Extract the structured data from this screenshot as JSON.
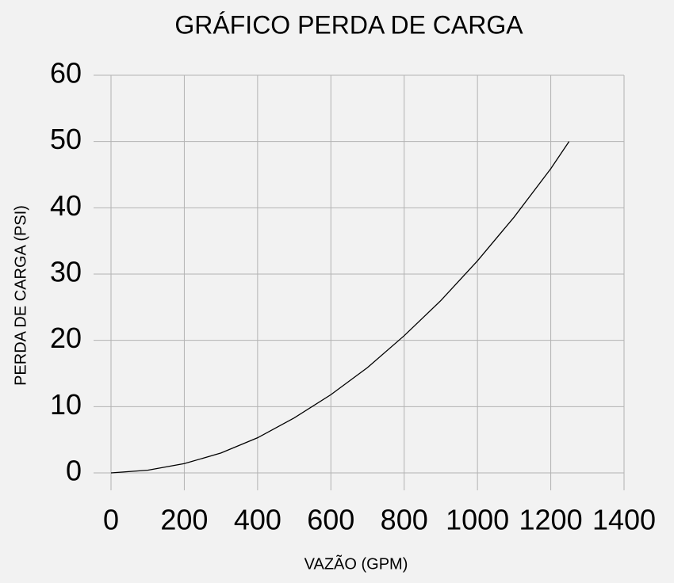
{
  "chart_data": {
    "type": "line",
    "title": "GRÁFICO PERDA DE CARGA",
    "x_label": "VAZÃO (GPM)",
    "y_label": "PERDA DE CARGA (PSI)",
    "x": [
      0,
      100,
      200,
      300,
      400,
      500,
      600,
      700,
      800,
      900,
      1000,
      1100,
      1200,
      1250
    ],
    "series": [
      {
        "color": "#000000",
        "values": [
          0,
          0.4,
          1.4,
          3,
          5.3,
          8.3,
          11.8,
          15.9,
          20.7,
          26,
          32,
          38.6,
          45.9,
          50
        ]
      }
    ],
    "xlim": [
      0,
      1400
    ],
    "xticks": [
      0,
      200,
      400,
      600,
      800,
      1000,
      1200,
      1400
    ],
    "ylim": [
      0,
      60
    ],
    "yticks": [
      0,
      10,
      20,
      30,
      40,
      50,
      60
    ],
    "grid": true
  }
}
